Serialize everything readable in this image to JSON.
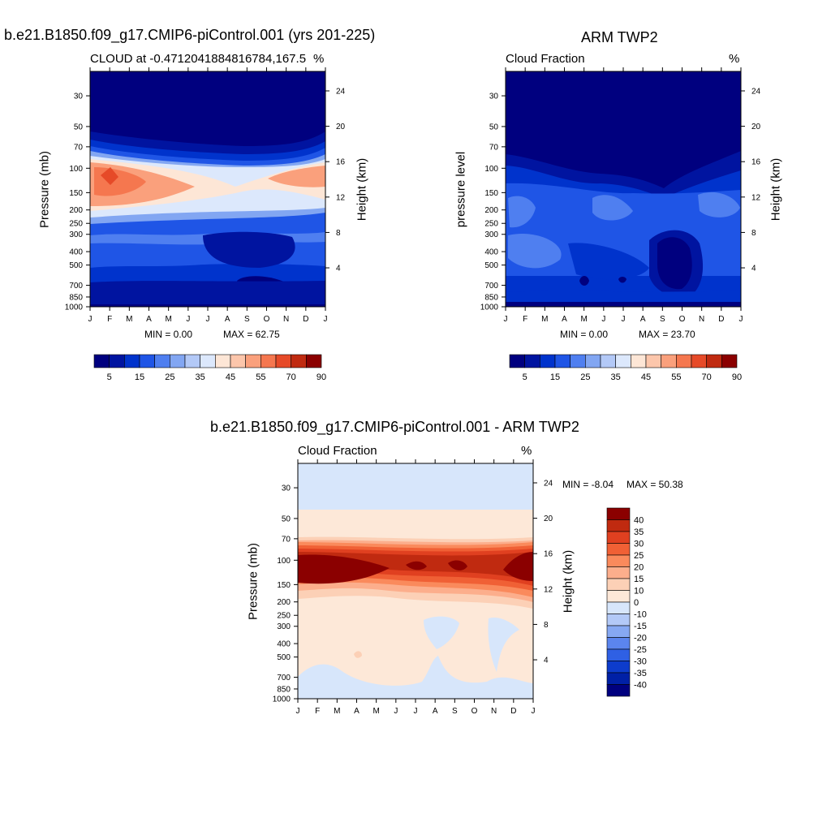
{
  "chart_data": [
    {
      "type": "heatmap",
      "title": "b.e21.B1850.f09_g17.CMIP6-piControl.001 (yrs 201-225)",
      "left_subtitle": "CLOUD at -0.4712041884816784,167.5",
      "right_subtitle": "%",
      "ylabel": "Pressure (mb)",
      "y2label": "Height (km)",
      "x_ticks": [
        "J",
        "F",
        "M",
        "A",
        "M",
        "J",
        "J",
        "A",
        "S",
        "O",
        "N",
        "D",
        "J"
      ],
      "pressure_ticks": [
        "30",
        "50",
        "70",
        "100",
        "150",
        "200",
        "250",
        "300",
        "400",
        "500",
        "700",
        "850",
        "1000"
      ],
      "height_ticks": [
        "24",
        "20",
        "16",
        "12",
        "8",
        "4"
      ],
      "min_label": "MIN =   0.00",
      "max_label": "MAX =  62.75",
      "colorbar": {
        "labels": [
          "5",
          "15",
          "25",
          "35",
          "45",
          "55",
          "70",
          "90"
        ]
      }
    },
    {
      "type": "heatmap",
      "title": "ARM TWP2",
      "left_subtitle": "Cloud Fraction",
      "right_subtitle": "%",
      "ylabel": "pressure level",
      "y2label": "Height (km)",
      "x_ticks": [
        "J",
        "F",
        "M",
        "A",
        "M",
        "J",
        "J",
        "A",
        "S",
        "O",
        "N",
        "D",
        "J"
      ],
      "pressure_ticks": [
        "30",
        "50",
        "70",
        "100",
        "150",
        "200",
        "250",
        "300",
        "400",
        "500",
        "700",
        "850",
        "1000"
      ],
      "height_ticks": [
        "24",
        "20",
        "16",
        "12",
        "8",
        "4"
      ],
      "min_label": "MIN =   0.00",
      "max_label": "MAX =  23.70",
      "colorbar": {
        "labels": [
          "5",
          "15",
          "25",
          "35",
          "45",
          "55",
          "70",
          "90"
        ]
      }
    },
    {
      "type": "heatmap",
      "title": "b.e21.B1850.f09_g17.CMIP6-piControl.001 - ARM TWP2",
      "left_subtitle": "Cloud Fraction",
      "right_subtitle": "%",
      "ylabel": "Pressure (mb)",
      "y2label": "Height (km)",
      "x_ticks": [
        "J",
        "F",
        "M",
        "A",
        "M",
        "J",
        "J",
        "A",
        "S",
        "O",
        "N",
        "D",
        "J"
      ],
      "pressure_ticks": [
        "30",
        "50",
        "70",
        "100",
        "150",
        "200",
        "250",
        "300",
        "400",
        "500",
        "700",
        "850",
        "1000"
      ],
      "height_ticks": [
        "24",
        "20",
        "16",
        "12",
        "8",
        "4"
      ],
      "min_label": "MIN =  -8.04",
      "max_label": "MAX =  50.38",
      "colorbar": {
        "labels": [
          "40",
          "35",
          "30",
          "25",
          "20",
          "15",
          "10",
          "0",
          "-10",
          "-15",
          "-20",
          "-25",
          "-30",
          "-35",
          "-40"
        ]
      }
    }
  ],
  "colors": {
    "seq": [
      "#00007f",
      "#0014a0",
      "#0033cc",
      "#1f55e6",
      "#4f7ff0",
      "#82a6f2",
      "#b3c9f7",
      "#dce8fc",
      "#fde6d6",
      "#fcc6ab",
      "#faa07c",
      "#f5774f",
      "#e64a28",
      "#c02a10",
      "#8b0000"
    ],
    "diff": [
      "#8b0000",
      "#c02a10",
      "#e04020",
      "#f06035",
      "#fa8a5c",
      "#fcae8c",
      "#fcd0b6",
      "#fde8d8",
      "#d7e6fb",
      "#b3c9f7",
      "#86a8f2",
      "#5b85ee",
      "#2f60e4",
      "#0d3ccc",
      "#0020a6",
      "#00007f"
    ]
  }
}
